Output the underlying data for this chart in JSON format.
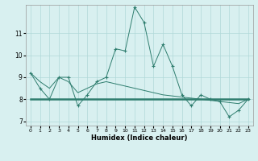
{
  "x": [
    0,
    1,
    2,
    3,
    4,
    5,
    6,
    7,
    8,
    9,
    10,
    11,
    12,
    13,
    14,
    15,
    16,
    17,
    18,
    19,
    20,
    21,
    22,
    23
  ],
  "y_main": [
    9.2,
    8.5,
    8.0,
    9.0,
    9.0,
    7.7,
    8.2,
    8.8,
    9.0,
    10.3,
    10.2,
    12.2,
    11.5,
    9.5,
    10.5,
    9.5,
    8.2,
    7.7,
    8.2,
    8.0,
    7.9,
    7.2,
    7.5,
    8.0
  ],
  "y_trend1": [
    9.2,
    8.8,
    8.5,
    9.0,
    8.8,
    8.3,
    8.5,
    8.7,
    8.8,
    8.7,
    8.6,
    8.5,
    8.4,
    8.3,
    8.2,
    8.15,
    8.1,
    8.05,
    8.0,
    7.95,
    7.9,
    7.85,
    7.8,
    8.0
  ],
  "y_flat": [
    8.0,
    8.0,
    8.0,
    8.0,
    8.0,
    8.0,
    8.0,
    8.0,
    8.0,
    8.0,
    8.0,
    8.0,
    8.0,
    8.0,
    8.0,
    8.0,
    8.0,
    8.0,
    8.0,
    8.0,
    8.0,
    8.0,
    8.0,
    8.0
  ],
  "line_color": "#2e7d6e",
  "bg_color": "#d8f0f0",
  "grid_color": "#b0d8d8",
  "xlabel": "Humidex (Indice chaleur)",
  "ylim": [
    6.8,
    12.3
  ],
  "xlim": [
    -0.5,
    23.5
  ],
  "yticks": [
    7,
    8,
    9,
    10,
    11
  ],
  "xticks": [
    0,
    1,
    2,
    3,
    4,
    5,
    6,
    7,
    8,
    9,
    10,
    11,
    12,
    13,
    14,
    15,
    16,
    17,
    18,
    19,
    20,
    21,
    22,
    23
  ]
}
